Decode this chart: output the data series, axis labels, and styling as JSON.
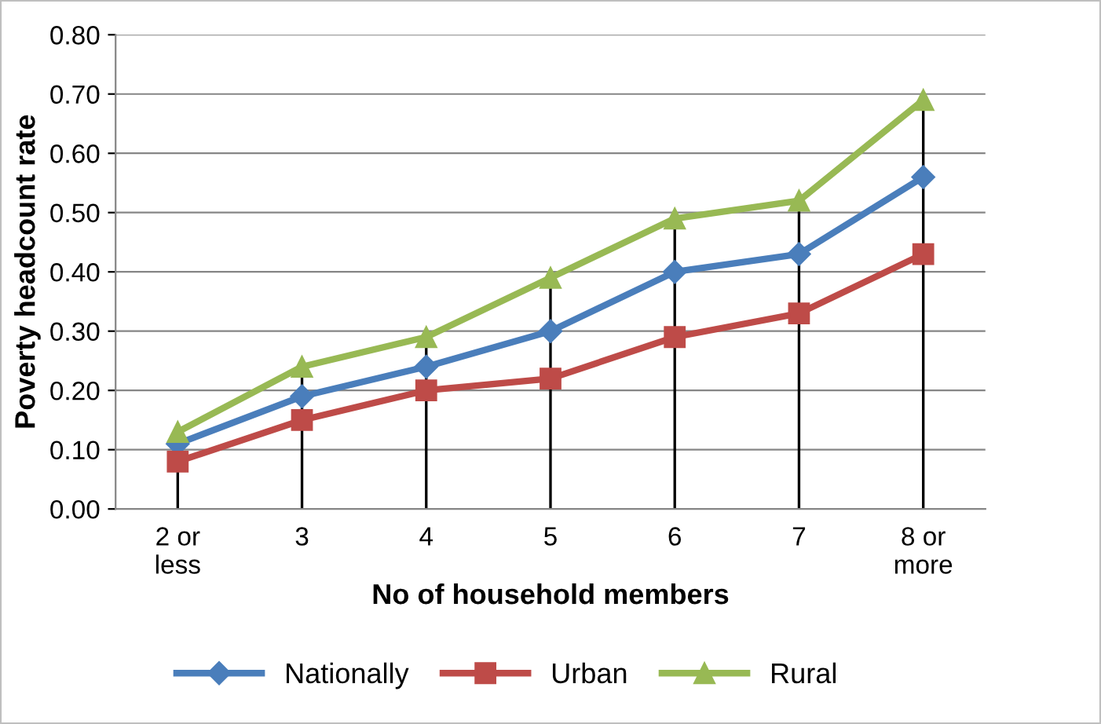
{
  "chart_data": {
    "type": "line",
    "xlabel": "No of household members",
    "ylabel": "Poverty headcount rate",
    "categories": [
      "2 or\nless",
      "3",
      "4",
      "5",
      "6",
      "7",
      "8 or\nmore"
    ],
    "series": [
      {
        "name": "Nationally",
        "color": "#4a7ebb",
        "marker": "diamond",
        "values": [
          0.11,
          0.19,
          0.24,
          0.3,
          0.4,
          0.43,
          0.56
        ]
      },
      {
        "name": "Urban",
        "color": "#be4b48",
        "marker": "square",
        "values": [
          0.08,
          0.15,
          0.2,
          0.22,
          0.29,
          0.33,
          0.43
        ]
      },
      {
        "name": "Rural",
        "color": "#98b954",
        "marker": "triangle",
        "values": [
          0.13,
          0.24,
          0.29,
          0.39,
          0.49,
          0.52,
          0.69
        ],
        "errors": [
          [
            0,
            0.13
          ],
          [
            0,
            0.24
          ],
          [
            0,
            0.29
          ],
          [
            0,
            0.39
          ],
          [
            0,
            0.49
          ],
          [
            0,
            0.52
          ],
          [
            0,
            0.69
          ]
        ]
      }
    ],
    "ylim": [
      0,
      0.8
    ],
    "yticks": [
      {
        "value": 0,
        "label": "0.00"
      },
      {
        "value": 0.1,
        "label": "0.10"
      },
      {
        "value": 0.2,
        "label": "0.20"
      },
      {
        "value": 0.3,
        "label": "0.30"
      },
      {
        "value": 0.4,
        "label": "0.40"
      },
      {
        "value": 0.5,
        "label": "0.50"
      },
      {
        "value": 0.6,
        "label": "0.60"
      },
      {
        "value": 0.7,
        "label": "0.70"
      },
      {
        "value": 0.8,
        "label": "0.80"
      }
    ],
    "grid": "y",
    "legend": "bottom",
    "line_style": "solid"
  }
}
